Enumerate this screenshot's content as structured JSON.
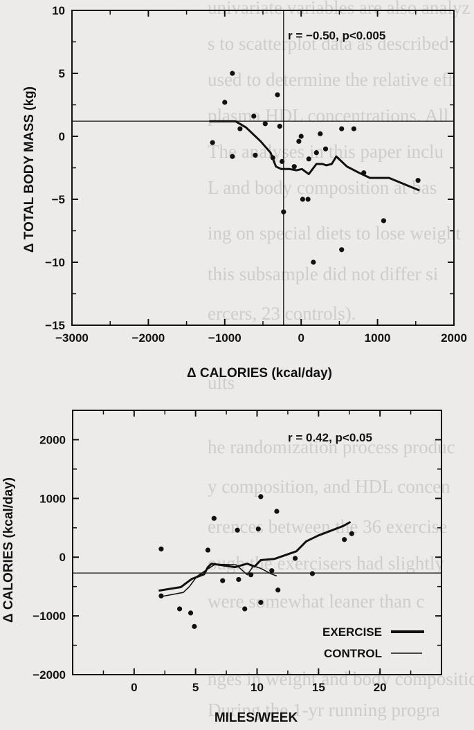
{
  "background_text_lines": [
    "univariate variables are also analyz",
    "s to scatterplot data as described",
    "used to determine the relative eff",
    "plasma HDL concentrations. All",
    "The analyses in this paper inclu",
    "L and body composition at bas",
    "ing on special diets to lose weight",
    "this subsample did not differ si",
    "ercers, 23 controls).",
    "ults",
    "he randomization process produc",
    "y composition, and HDL concen",
    "erences between the 36 exercise",
    "ough the exercisers had slightly",
    "were somewhat leaner than c",
    "nges in weight and body compositio",
    "During the 1-yr running progra"
  ],
  "chart_data": [
    {
      "type": "scatter",
      "title": "",
      "xlabel": "Δ CALORIES (kcal/day)",
      "ylabel": "Δ TOTAL BODY MASS (kg)",
      "xlim": [
        -3000,
        2000
      ],
      "ylim": [
        -15,
        10
      ],
      "xticks": [
        -3000,
        -2000,
        -1000,
        0,
        1000,
        2000
      ],
      "yticks": [
        10,
        5,
        0,
        -5,
        -10,
        -15
      ],
      "x_tick_labels": [
        "−3000",
        "−2000",
        "−1000",
        "0",
        "1000",
        "2000"
      ],
      "y_tick_labels": [
        "10",
        "5",
        "0",
        "−5",
        "−10",
        "−15"
      ],
      "reference_lines": {
        "x": -230,
        "y": 1.2
      },
      "annotation": "r = −0.50, p<0.005",
      "points": [
        {
          "x": -1160,
          "y": -0.5
        },
        {
          "x": -1000,
          "y": 2.7
        },
        {
          "x": -900,
          "y": 5.0
        },
        {
          "x": -900,
          "y": -1.6
        },
        {
          "x": -800,
          "y": 0.6
        },
        {
          "x": -620,
          "y": 1.6
        },
        {
          "x": -600,
          "y": -1.5
        },
        {
          "x": -470,
          "y": 1.0
        },
        {
          "x": -370,
          "y": -1.7
        },
        {
          "x": -310,
          "y": 3.3
        },
        {
          "x": -280,
          "y": 0.8
        },
        {
          "x": -250,
          "y": -2.0
        },
        {
          "x": -230,
          "y": -6.0
        },
        {
          "x": -90,
          "y": -2.4
        },
        {
          "x": -30,
          "y": -0.4
        },
        {
          "x": 0,
          "y": 0.0
        },
        {
          "x": 20,
          "y": -5.0
        },
        {
          "x": 90,
          "y": -5.0
        },
        {
          "x": 100,
          "y": -1.8
        },
        {
          "x": 160,
          "y": -10.0
        },
        {
          "x": 200,
          "y": -1.3
        },
        {
          "x": 250,
          "y": 0.2
        },
        {
          "x": 320,
          "y": -1.0
        },
        {
          "x": 530,
          "y": 0.6
        },
        {
          "x": 530,
          "y": -9.0
        },
        {
          "x": 690,
          "y": 0.6
        },
        {
          "x": 820,
          "y": -2.9
        },
        {
          "x": 1080,
          "y": -6.7
        },
        {
          "x": 1530,
          "y": -3.5
        }
      ],
      "series": [
        {
          "x": [
            -1200,
            -860,
            -720,
            -530,
            -400,
            -330,
            -260,
            -150,
            -60,
            10,
            100,
            200,
            280,
            330,
            400,
            460,
            600,
            760,
            900,
            1150,
            1550
          ],
          "values": [
            1.2,
            1.2,
            0.7,
            -0.4,
            -1.3,
            -2.4,
            -2.6,
            -2.6,
            -2.7,
            -2.6,
            -3.0,
            -2.2,
            -2.2,
            -2.3,
            -2.2,
            -1.6,
            -2.4,
            -2.9,
            -3.3,
            -3.3,
            -4.3
          ]
        }
      ]
    },
    {
      "type": "scatter",
      "title": "",
      "xlabel": "MILES/WEEK",
      "ylabel": "Δ CALORIES (kcal/day)",
      "xlim": [
        -5,
        25
      ],
      "ylim": [
        -2000,
        2500
      ],
      "xticks": [
        0,
        5,
        10,
        15,
        20
      ],
      "yticks": [
        2000,
        1000,
        0,
        -1000,
        -2000
      ],
      "x_tick_labels": [
        "0",
        "5",
        "10",
        "15",
        "20"
      ],
      "y_tick_labels": [
        "2000",
        "1000",
        "0",
        "−1000",
        "−2000"
      ],
      "reference_lines": {
        "y": -270
      },
      "annotation": "r = 0.42, p<0.05",
      "points": [
        {
          "x": 2.2,
          "y": -660
        },
        {
          "x": 2.2,
          "y": 140
        },
        {
          "x": 3.7,
          "y": -880
        },
        {
          "x": 4.6,
          "y": -950
        },
        {
          "x": 4.9,
          "y": -1180
        },
        {
          "x": 6.0,
          "y": 120
        },
        {
          "x": 6.5,
          "y": 660
        },
        {
          "x": 7.2,
          "y": -400
        },
        {
          "x": 8.4,
          "y": 460
        },
        {
          "x": 8.5,
          "y": -380
        },
        {
          "x": 9.0,
          "y": -880
        },
        {
          "x": 9.5,
          "y": -300
        },
        {
          "x": 10.1,
          "y": 480
        },
        {
          "x": 10.3,
          "y": 1030
        },
        {
          "x": 10.3,
          "y": -770
        },
        {
          "x": 11.2,
          "y": -230
        },
        {
          "x": 11.6,
          "y": 780
        },
        {
          "x": 11.7,
          "y": -560
        },
        {
          "x": 13.1,
          "y": -20
        },
        {
          "x": 14.5,
          "y": -280
        },
        {
          "x": 17.1,
          "y": 300
        },
        {
          "x": 17.7,
          "y": 400
        }
      ],
      "series": [
        {
          "name": "EXERCISE",
          "x": [
            2,
            3.8,
            4.7,
            5.7,
            6.0,
            6.3,
            8.2,
            9.2,
            9.8,
            10.3,
            11.4,
            13.2,
            14.0,
            15.0,
            17.0,
            17.6
          ],
          "values": [
            -570,
            -510,
            -370,
            -290,
            -170,
            -110,
            -170,
            -110,
            -160,
            -50,
            -30,
            100,
            270,
            370,
            530,
            600
          ]
        },
        {
          "name": "CONTROL",
          "x": [
            2.2,
            4.0,
            4.5,
            5.1,
            6.0,
            6.6,
            8.3,
            9.2,
            9.7,
            10.3,
            11.2,
            11.6
          ],
          "values": [
            -670,
            -600,
            -500,
            -330,
            -200,
            -120,
            -130,
            -300,
            -150,
            -190,
            -290,
            -320
          ]
        }
      ],
      "legend": {
        "position": "bottom-right"
      }
    }
  ]
}
